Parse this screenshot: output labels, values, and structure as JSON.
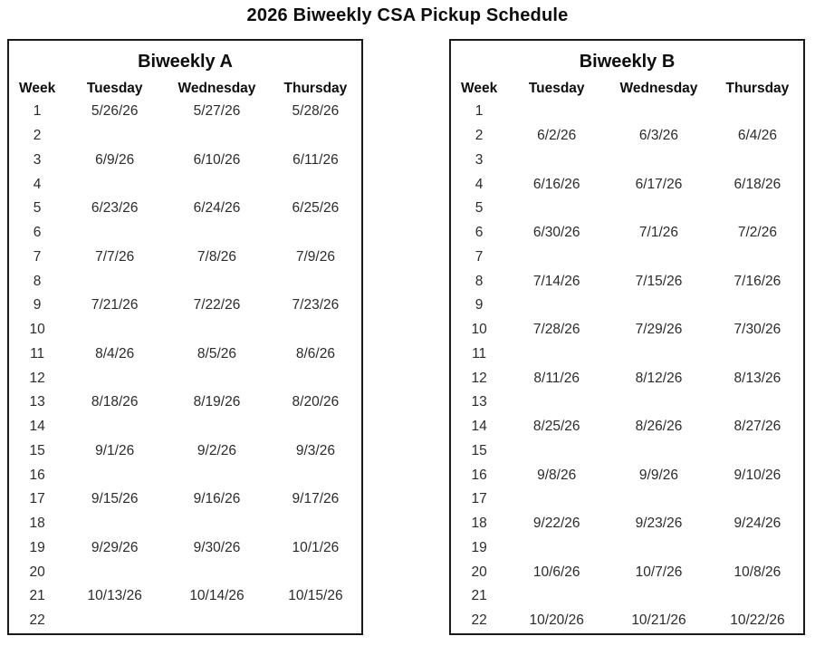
{
  "page_title": "2026 Biweekly CSA Pickup Schedule",
  "colors": {
    "background": "#ffffff",
    "border": "#1a1a1a",
    "heading_text": "#0d0d0d",
    "body_text": "#2b2b2b"
  },
  "tables": [
    {
      "title": "Biweekly A",
      "columns": [
        "Week",
        "Tuesday",
        "Wednesday",
        "Thursday"
      ],
      "rows": [
        [
          "1",
          "5/26/26",
          "5/27/26",
          "5/28/26"
        ],
        [
          "2",
          "",
          "",
          ""
        ],
        [
          "3",
          "6/9/26",
          "6/10/26",
          "6/11/26"
        ],
        [
          "4",
          "",
          "",
          ""
        ],
        [
          "5",
          "6/23/26",
          "6/24/26",
          "6/25/26"
        ],
        [
          "6",
          "",
          "",
          ""
        ],
        [
          "7",
          "7/7/26",
          "7/8/26",
          "7/9/26"
        ],
        [
          "8",
          "",
          "",
          ""
        ],
        [
          "9",
          "7/21/26",
          "7/22/26",
          "7/23/26"
        ],
        [
          "10",
          "",
          "",
          ""
        ],
        [
          "11",
          "8/4/26",
          "8/5/26",
          "8/6/26"
        ],
        [
          "12",
          "",
          "",
          ""
        ],
        [
          "13",
          "8/18/26",
          "8/19/26",
          "8/20/26"
        ],
        [
          "14",
          "",
          "",
          ""
        ],
        [
          "15",
          "9/1/26",
          "9/2/26",
          "9/3/26"
        ],
        [
          "16",
          "",
          "",
          ""
        ],
        [
          "17",
          "9/15/26",
          "9/16/26",
          "9/17/26"
        ],
        [
          "18",
          "",
          "",
          ""
        ],
        [
          "19",
          "9/29/26",
          "9/30/26",
          "10/1/26"
        ],
        [
          "20",
          "",
          "",
          ""
        ],
        [
          "21",
          "10/13/26",
          "10/14/26",
          "10/15/26"
        ],
        [
          "22",
          "",
          "",
          ""
        ]
      ]
    },
    {
      "title": "Biweekly B",
      "columns": [
        "Week",
        "Tuesday",
        "Wednesday",
        "Thursday"
      ],
      "rows": [
        [
          "1",
          "",
          "",
          ""
        ],
        [
          "2",
          "6/2/26",
          "6/3/26",
          "6/4/26"
        ],
        [
          "3",
          "",
          "",
          ""
        ],
        [
          "4",
          "6/16/26",
          "6/17/26",
          "6/18/26"
        ],
        [
          "5",
          "",
          "",
          ""
        ],
        [
          "6",
          "6/30/26",
          "7/1/26",
          "7/2/26"
        ],
        [
          "7",
          "",
          "",
          ""
        ],
        [
          "8",
          "7/14/26",
          "7/15/26",
          "7/16/26"
        ],
        [
          "9",
          "",
          "",
          ""
        ],
        [
          "10",
          "7/28/26",
          "7/29/26",
          "7/30/26"
        ],
        [
          "11",
          "",
          "",
          ""
        ],
        [
          "12",
          "8/11/26",
          "8/12/26",
          "8/13/26"
        ],
        [
          "13",
          "",
          "",
          ""
        ],
        [
          "14",
          "8/25/26",
          "8/26/26",
          "8/27/26"
        ],
        [
          "15",
          "",
          "",
          ""
        ],
        [
          "16",
          "9/8/26",
          "9/9/26",
          "9/10/26"
        ],
        [
          "17",
          "",
          "",
          ""
        ],
        [
          "18",
          "9/22/26",
          "9/23/26",
          "9/24/26"
        ],
        [
          "19",
          "",
          "",
          ""
        ],
        [
          "20",
          "10/6/26",
          "10/7/26",
          "10/8/26"
        ],
        [
          "21",
          "",
          "",
          ""
        ],
        [
          "22",
          "10/20/26",
          "10/21/26",
          "10/22/26"
        ]
      ]
    }
  ]
}
